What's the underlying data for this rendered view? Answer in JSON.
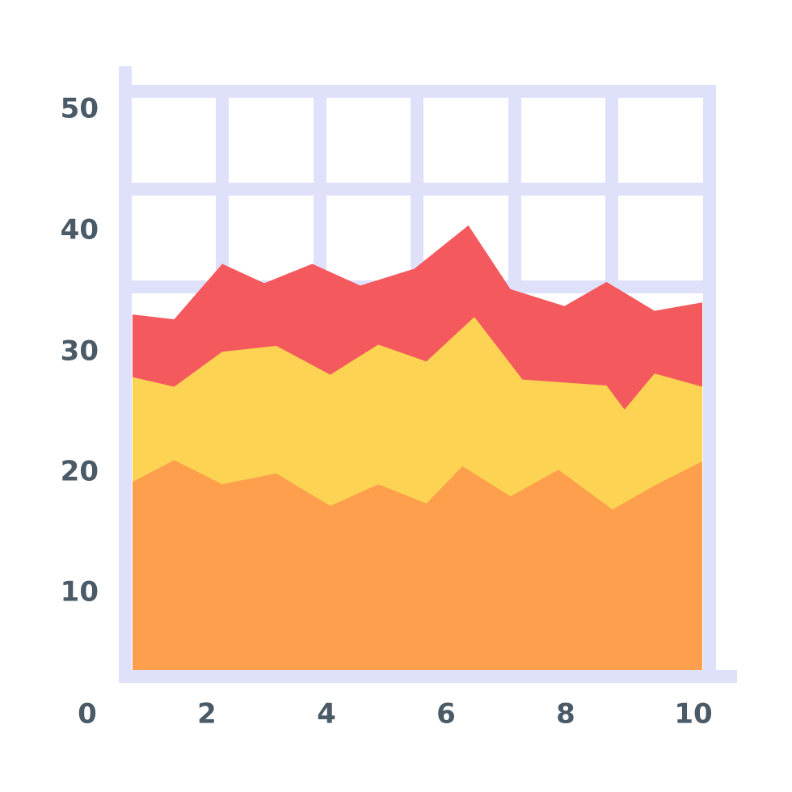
{
  "chart_data": {
    "type": "area",
    "stacked": true,
    "grid": true,
    "x_ticks": [
      "0",
      "2",
      "4",
      "6",
      "8",
      "10"
    ],
    "y_ticks": [
      "10",
      "20",
      "30",
      "40",
      "50"
    ],
    "xlim": [
      0,
      10
    ],
    "ylim": [
      0,
      50
    ],
    "colors": {
      "grid": "#dfe1fb",
      "series": [
        "#fd9f4c",
        "#fcd353",
        "#f3595d"
      ]
    },
    "series_tops": [
      {
        "points": [
          [
            0.8,
            19.3
          ],
          [
            1.4,
            21.1
          ],
          [
            2.2,
            19.1
          ],
          [
            3.1,
            20.0
          ],
          [
            4.0,
            17.3
          ],
          [
            4.8,
            19.1
          ],
          [
            5.6,
            17.5
          ],
          [
            6.2,
            20.6
          ],
          [
            7.0,
            18.1
          ],
          [
            7.8,
            20.3
          ],
          [
            8.7,
            17.0
          ],
          [
            9.4,
            19.0
          ],
          [
            10.1,
            21.0
          ]
        ]
      },
      {
        "points": [
          [
            0.8,
            28.0
          ],
          [
            1.4,
            27.2
          ],
          [
            2.2,
            30.1
          ],
          [
            3.1,
            30.6
          ],
          [
            4.0,
            28.2
          ],
          [
            4.8,
            30.7
          ],
          [
            5.6,
            29.3
          ],
          [
            6.4,
            33.0
          ],
          [
            7.2,
            27.8
          ],
          [
            8.6,
            27.3
          ],
          [
            8.9,
            25.3
          ],
          [
            9.4,
            28.3
          ],
          [
            10.1,
            27.2
          ]
        ]
      },
      {
        "points": [
          [
            0.8,
            33.2
          ],
          [
            1.4,
            32.8
          ],
          [
            2.2,
            37.4
          ],
          [
            2.9,
            35.8
          ],
          [
            3.7,
            37.4
          ],
          [
            4.5,
            35.6
          ],
          [
            5.4,
            37.0
          ],
          [
            6.3,
            40.6
          ],
          [
            7.0,
            35.3
          ],
          [
            7.9,
            33.9
          ],
          [
            8.6,
            35.9
          ],
          [
            9.4,
            33.5
          ],
          [
            10.1,
            34.2
          ]
        ]
      }
    ]
  }
}
